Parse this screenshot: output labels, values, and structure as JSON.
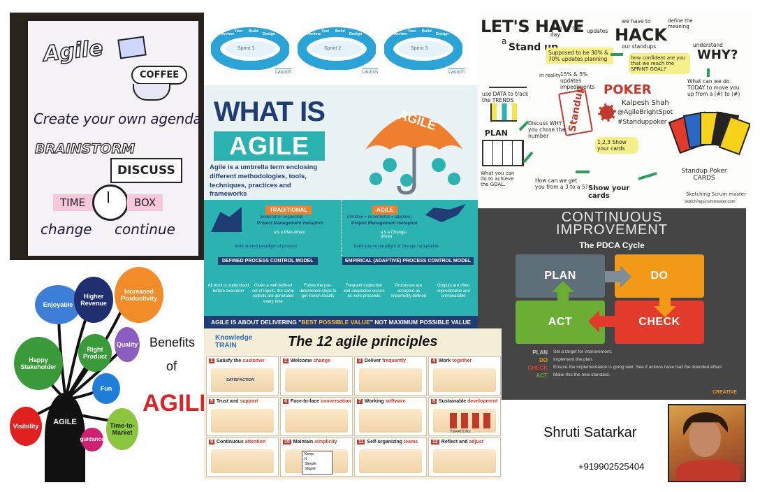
{
  "agenda": {
    "title": "Agile",
    "coffee": "COFFEE",
    "headline": "Create your own agenda",
    "brainstorm": "BRAINSTORM",
    "discuss": "DISCUSS",
    "time": "TIME",
    "box": "BOX",
    "change": "change",
    "continue": "continue"
  },
  "sprints": {
    "labels": [
      "Sprint 1",
      "Sprint 2",
      "Sprint 3"
    ],
    "launch": "Launch",
    "steps": [
      "Review",
      "Test",
      "Build",
      "Design"
    ]
  },
  "what_is": {
    "title_line1": "WHAT IS",
    "title_line2": "AGILE",
    "umbrella_label": "AGILE",
    "description": "Agile is a umbrella term enclosing different methodologies, tools, techniques, practices and frameworks",
    "traditional": {
      "badge": "TRADITIONAL",
      "sub": "(waterfall or sequential)",
      "metaphor": "Project Management metaphor",
      "aka": "a.k.a Plan-driven",
      "build": "build around paradigm of process"
    },
    "agile": {
      "badge": "AGILE",
      "sub": "(iterative + incremental + adaptive)",
      "metaphor": "Project Management metaphor",
      "aka": "a.k.a Change-driven",
      "build": "build around paradigm of change / adaptation"
    },
    "defined_model": "DEFINED PROCESS CONTROL MODEL",
    "empirical_model": "EMPIRICAL (ADAPTIVE) PROCESS CONTROL MODEL",
    "defined_points": [
      "All work is understood before execution",
      "Given a well defined set of inputs, the same outputs are generated every time",
      "Follow the pre-determined steps to get known results"
    ],
    "empirical_points": [
      "Frequent inspection and adaptation occurs as work proceeds",
      "Processes are accepted as imperfectly defined",
      "Outputs are often unpredictable and unrepeatable"
    ],
    "footer_pre": "AGILE IS ABOUT DELIVERING \"",
    "footer_hl": "BEST POSSIBLE VALUE",
    "footer_post": "\" NOT MAXIMUM POSSIBLE VALUE"
  },
  "standup": {
    "title_line1": "LET'S HAVE",
    "title_line2": "a",
    "title_line3": "Stand up",
    "plan_day": "plan for the day",
    "updates": "updates",
    "supposed": "Supposed to be 30% & 70% updates planning",
    "in_reality": "in reality",
    "ratio": "15% & 5% updates impediments",
    "hack": "HACK",
    "we_have_to": "we have to",
    "our_standups": "our standups",
    "how_confident": "how confident are you that we reach the SPRINT GOAL?",
    "define": "define the meaning",
    "understand": "understand",
    "why": "WHY?",
    "what_can": "What can we do TODAY to move you up from a (#) to (#)",
    "use_data": "use DATA to track the TRENDS",
    "plan": "PLAN",
    "discuss_why": "Discuss WHY you chose that number",
    "show_cards": "1,2,3 Show your cards",
    "standup": "Standup",
    "poker": "POKER",
    "author": "Kalpesh Shah",
    "handle": "@AgileBrightSpot",
    "hashtag": "#Standuppoker",
    "poker_cards": "Standup Poker CARDS",
    "how_can": "How can we get you from a 3 to a 5?",
    "what_you_can": "What you can do to achieve the GOAL.",
    "show_your_cards": "Show your cards",
    "credit": "Sketching Scrum master",
    "site": "sketchingscrummaster.com"
  },
  "benefits": {
    "title_line1": "Benefits",
    "title_line2": "of",
    "title_line3": "AGILE",
    "trunk": "AGILE",
    "bubbles": [
      "Enjoyable",
      "Higher Revenue",
      "Increased Productivity",
      "Happy Stakeholder",
      "Right Product",
      "Quality",
      "Fun",
      "Visibility",
      "guidance",
      "Time-to-Market"
    ]
  },
  "principles": {
    "brand_line1": "Knowledge",
    "brand_line2": "TRAIN",
    "title": "The 12 agile principles",
    "items": [
      {
        "num": "1",
        "pre": "Satisfy the ",
        "key": "customer"
      },
      {
        "num": "2",
        "pre": "Welcome ",
        "key": "change"
      },
      {
        "num": "3",
        "pre": "Deliver ",
        "key": "frequently"
      },
      {
        "num": "4",
        "pre": "Work ",
        "key": "together"
      },
      {
        "num": "5",
        "pre": "Trust and ",
        "key": "support"
      },
      {
        "num": "6",
        "pre": "Face-to-face ",
        "key": "conversation"
      },
      {
        "num": "7",
        "pre": "Working ",
        "key": "software"
      },
      {
        "num": "8",
        "pre": "Sustainable ",
        "key": "development"
      },
      {
        "num": "9",
        "pre": "Continuous ",
        "key": "attention"
      },
      {
        "num": "10",
        "pre": "Maintain ",
        "key": "simplicity"
      },
      {
        "num": "11",
        "pre": "Self-organizing ",
        "key": "teams"
      },
      {
        "num": "12",
        "pre": "Reflect and ",
        "key": "adjust"
      }
    ],
    "satisfaction": "SATISFACTION",
    "iterations": "ITERATIONS",
    "kiss": [
      "Keep",
      "It",
      "Simple",
      "Stupid"
    ]
  },
  "pdca": {
    "title_line1": "CONTINUOUS",
    "title_line2": "IMPROVEMENT",
    "subtitle": "The PDCA Cycle",
    "plan": "PLAN",
    "do": "DO",
    "check": "CHECK",
    "act": "ACT",
    "legend": [
      {
        "key": "PLAN",
        "text": "Set a target for improvement."
      },
      {
        "key": "DO",
        "text": "Implement the plan."
      },
      {
        "key": "CHECK",
        "text": "Ensure the implementation is going well. See if actions have had the intended effect."
      },
      {
        "key": "ACT",
        "text": "Make this the new standard."
      }
    ],
    "brand": "CREATIVE"
  },
  "profile": {
    "name": "Shruti Satarkar",
    "phone": "+919902525404"
  },
  "colors": {
    "teal": "#2bb3b1",
    "navy": "#1f3c73",
    "orange": "#f07f2f",
    "plan_gray": "#5f6f7a",
    "do_orange": "#f29a18",
    "act_green": "#6aae33",
    "check_red": "#e23b2b"
  }
}
